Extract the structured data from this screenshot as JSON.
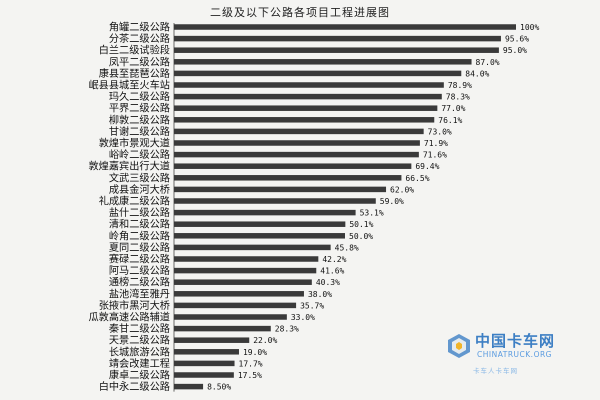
{
  "chart_data": {
    "type": "bar",
    "orientation": "horizontal",
    "title": "二级及以下公路各项目工程进展图",
    "categories": [
      "角罐二级公路",
      "分茶二级公路",
      "白兰二级试验段",
      "凤平二级公路",
      "康县至琵琶公路",
      "岷县县城至火车站",
      "玛久二级公路",
      "平界二级公路",
      "柳敦二级公路",
      "甘谢二级公路",
      "敦煌市景观大道",
      "峪岭二级公路",
      "敦煌嘉宾出行大道",
      "文武三级公路",
      "成县金河大桥",
      "礼成康二级公路",
      "盐什二级公路",
      "清和二级公路",
      "岭角二级公路",
      "夏同二级公路",
      "赛碌二级公路",
      "阿马二级公路",
      "通榜二级公路",
      "盐池湾至雅丹",
      "张掖市黑河大桥",
      "瓜敦高速公路辅道",
      "秦甘二级公路",
      "天景二级公路",
      "长城旅游公路",
      "靖会改建工程",
      "康卓二级公路",
      "白中永二级公路"
    ],
    "values": [
      100,
      95.6,
      95.0,
      87.0,
      84.0,
      78.9,
      78.3,
      77.0,
      76.1,
      73.0,
      71.9,
      71.6,
      69.4,
      66.5,
      62.0,
      59.0,
      53.1,
      50.1,
      50.0,
      45.8,
      42.2,
      41.6,
      40.3,
      38.0,
      35.7,
      33.0,
      28.3,
      22.0,
      19.0,
      17.7,
      17.5,
      8.5
    ],
    "value_labels": [
      "100%",
      "95.6%",
      "95.0%",
      "87.0%",
      "84.0%",
      "78.9%",
      "78.3%",
      "77.0%",
      "76.1%",
      "73.0%",
      "71.9%",
      "71.6%",
      "69.4%",
      "66.5%",
      "62.0%",
      "59.0%",
      "53.1%",
      "50.1%",
      "50.0%",
      "45.8%",
      "42.2%",
      "41.6%",
      "40.3%",
      "38.0%",
      "35.7%",
      "33.0%",
      "28.3%",
      "22.0%",
      "19.0%",
      "17.7%",
      "17.5%",
      "8.50%"
    ],
    "xlim": [
      0,
      100
    ],
    "grid": false,
    "legend": "none",
    "bar_color": "#3a3a3a"
  },
  "watermark": {
    "title": "中国卡车网",
    "domain": "CHINATRUCK.ORG",
    "slogan": "卡车人卡车网",
    "accent": "#3d7fc4"
  }
}
